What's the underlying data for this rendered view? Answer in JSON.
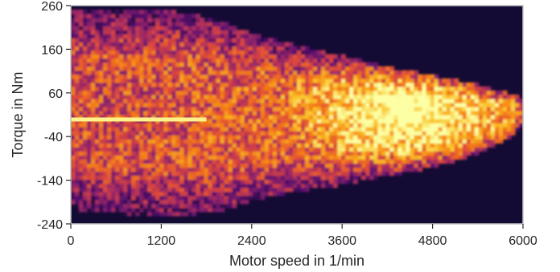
{
  "chart_data": {
    "type": "heatmap",
    "title": "",
    "xlabel": "Motor speed in 1/min",
    "ylabel": "Torque in Nm",
    "xlim": [
      0,
      6000
    ],
    "ylim": [
      -240,
      260
    ],
    "xticks": [
      0,
      1200,
      2400,
      3600,
      4800,
      6000
    ],
    "yticks": [
      -240,
      -140,
      -40,
      60,
      160,
      260
    ],
    "xtick_labels": [
      "0",
      "1200",
      "2400",
      "3600",
      "4800",
      "6000"
    ],
    "ytick_labels": [
      "-240",
      "-140",
      "-40",
      "60",
      "160",
      "260"
    ],
    "colormap": "inferno",
    "background_color": "#140b35",
    "legend": "none",
    "grid": false,
    "density_envelope": {
      "speed": [
        0,
        500,
        1000,
        1500,
        2000,
        2400,
        3000,
        3600,
        4200,
        4800,
        5400,
        5800,
        6000
      ],
      "upper_torque": [
        255,
        255,
        250,
        245,
        225,
        195,
        170,
        145,
        120,
        100,
        80,
        60,
        50
      ],
      "lower_torque": [
        -205,
        -215,
        -220,
        -220,
        -210,
        -185,
        -165,
        -150,
        -130,
        -110,
        -80,
        -45,
        -10
      ]
    },
    "density_peak": {
      "speed_range": [
        3000,
        5400
      ],
      "torque_range": [
        -110,
        150
      ]
    },
    "horizontal_band": {
      "torque": 0,
      "speed_range": [
        0,
        1800
      ]
    }
  }
}
